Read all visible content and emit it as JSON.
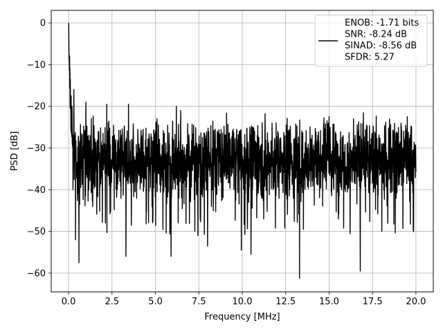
{
  "chart_data": {
    "type": "line",
    "title": "",
    "xlabel": "Frequency [MHz]",
    "ylabel": "PSD [dB]",
    "xlim": [
      -1.0,
      21.0
    ],
    "ylim": [
      -64.5,
      3.0
    ],
    "xticks": [
      0.0,
      2.5,
      5.0,
      7.5,
      10.0,
      12.5,
      15.0,
      17.5,
      20.0
    ],
    "xtick_labels": [
      "0.0",
      "2.5",
      "5.0",
      "7.5",
      "10.0",
      "12.5",
      "15.0",
      "17.5",
      "20.0"
    ],
    "yticks": [
      0,
      -10,
      -20,
      -30,
      -40,
      -50,
      -60
    ],
    "ytick_labels": [
      "0",
      "−10",
      "−20",
      "−30",
      "−40",
      "−50",
      "−60"
    ],
    "grid": true,
    "legend_position": "top-right",
    "legend_lines": [
      "ENOB: -1.71 bits",
      "SNR: -8.24 dB",
      "SINAD: -8.56 dB",
      "SFDR: 5.27"
    ],
    "series": [
      {
        "color": "#000000",
        "x_range": [
          0.0,
          20.0
        ],
        "num_points": 2048,
        "noise_floor_mean_db": -33,
        "noise_floor_spread_db": [
          -45,
          -23
        ],
        "notable_points": [
          {
            "x": 0.0,
            "y": 0.0
          },
          {
            "x": 0.02,
            "y": -6.5
          },
          {
            "x": 0.06,
            "y": -8.0
          },
          {
            "x": 0.1,
            "y": -13.5
          },
          {
            "x": 0.15,
            "y": -17.5
          },
          {
            "x": 0.2,
            "y": -20.0
          },
          {
            "x": 0.25,
            "y": -40.0
          },
          {
            "x": 0.3,
            "y": -16.0
          },
          {
            "x": 0.4,
            "y": -52.0
          },
          {
            "x": 0.6,
            "y": -57.5
          },
          {
            "x": 1.0,
            "y": -19.0
          },
          {
            "x": 2.2,
            "y": -19.5
          },
          {
            "x": 3.3,
            "y": -56.0
          },
          {
            "x": 3.45,
            "y": -19.5
          },
          {
            "x": 5.9,
            "y": -56.0
          },
          {
            "x": 6.2,
            "y": -20.0
          },
          {
            "x": 8.0,
            "y": -53.5
          },
          {
            "x": 9.95,
            "y": -54.5
          },
          {
            "x": 10.5,
            "y": -55.5
          },
          {
            "x": 13.3,
            "y": -61.2
          },
          {
            "x": 15.0,
            "y": -22.5
          },
          {
            "x": 16.8,
            "y": -59.5
          },
          {
            "x": 19.5,
            "y": -22.5
          }
        ]
      }
    ]
  }
}
